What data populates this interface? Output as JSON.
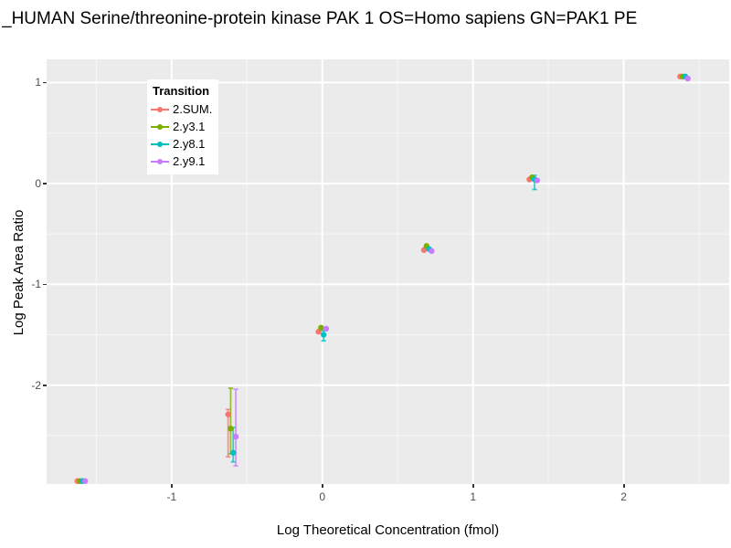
{
  "window": {
    "title": "_HUMAN Serine/threonine-protein kinase PAK 1 OS=Homo sapiens GN=PAK1 PE"
  },
  "chart_data": {
    "type": "scatter",
    "title": "_HUMAN Serine/threonine-protein kinase PAK 1 OS=Homo sapiens GN=PAK1 PE",
    "xlabel": "Log Theoretical Concentration (fmol)",
    "ylabel": "Log Peak Area Ratio",
    "xlim": [
      -1.83,
      2.7
    ],
    "ylim": [
      -2.98,
      1.23
    ],
    "x_ticks": [
      -1,
      0,
      1,
      2
    ],
    "y_ticks": [
      1,
      0,
      -1,
      -2
    ],
    "x_minor_ticks": [
      -1.5,
      -0.5,
      0.5,
      1.5,
      2.5
    ],
    "y_minor_ticks": [
      0.5,
      -0.5,
      -1.5,
      -2.5
    ],
    "grid": true,
    "panel_background": "#EBEBEB",
    "grid_major_color": "#FFFFFF",
    "legend": {
      "title": "Transition",
      "position": "inside-top-left"
    },
    "x": [
      -1.6,
      -0.6,
      0.0,
      0.7,
      1.4,
      2.4
    ],
    "series": [
      {
        "name": "2.SUM.",
        "color": "#F8766D",
        "y": [
          -2.95,
          -2.29,
          -1.47,
          -0.66,
          0.04,
          1.06
        ],
        "ylo": [
          null,
          -2.71,
          null,
          null,
          null,
          null
        ],
        "yhi": [
          null,
          -2.24,
          null,
          null,
          null,
          null
        ]
      },
      {
        "name": "2.y3.1",
        "color": "#7CAE00",
        "y": [
          -2.95,
          -2.43,
          -1.43,
          -0.62,
          0.06,
          1.06
        ],
        "ylo": [
          null,
          -2.68,
          null,
          null,
          null,
          null
        ],
        "yhi": [
          null,
          -2.03,
          null,
          null,
          null,
          null
        ]
      },
      {
        "name": "2.y8.1",
        "color": "#00BFC4",
        "y": [
          -2.95,
          -2.67,
          -1.5,
          -0.65,
          0.04,
          1.06
        ],
        "ylo": [
          null,
          -2.76,
          -1.56,
          null,
          -0.06,
          null
        ],
        "yhi": [
          null,
          -2.42,
          -1.46,
          null,
          0.08,
          null
        ]
      },
      {
        "name": "2.y9.1",
        "color": "#C77CFF",
        "y": [
          -2.95,
          -2.51,
          -1.44,
          -0.67,
          0.03,
          1.04
        ],
        "ylo": [
          null,
          -2.8,
          null,
          null,
          null,
          null
        ],
        "yhi": [
          null,
          -2.04,
          null,
          null,
          null,
          null
        ]
      }
    ]
  }
}
